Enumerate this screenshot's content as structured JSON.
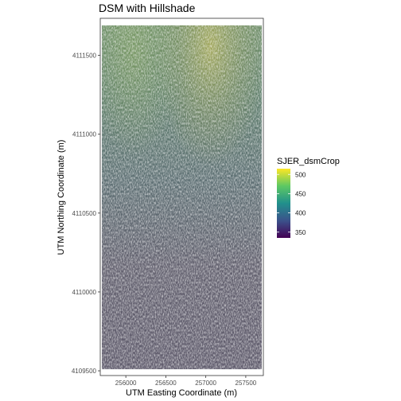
{
  "chart_data": {
    "type": "heatmap",
    "title": "DSM with Hillshade",
    "xlabel": "UTM Easting Coordinate (m)",
    "ylabel": "UTM Northing Coordinate (m)",
    "xlim": [
      255680,
      257720
    ],
    "ylim": [
      4109470,
      4111735
    ],
    "x_ticks": [
      256000,
      256500,
      257000,
      257500
    ],
    "x_tick_labels": [
      "256000",
      "256500",
      "257000",
      "257500"
    ],
    "y_ticks": [
      4109500,
      4110000,
      4110500,
      4111000,
      4111500
    ],
    "y_tick_labels": [
      "4109500",
      "4110000",
      "4110500",
      "4111000",
      "4111500"
    ],
    "raster_extent": {
      "xmin": 255700,
      "xmax": 257700,
      "ymin": 4109510,
      "ymax": 4111690
    },
    "legend": {
      "title": "SJER_dsmCrop",
      "range": [
        335,
        515
      ],
      "ticks": [
        350,
        400,
        450,
        500
      ],
      "tick_labels": [
        "350",
        "400",
        "450",
        "500"
      ],
      "colors": [
        "#440154",
        "#3b528b",
        "#21908c",
        "#5dc863",
        "#fde725"
      ]
    },
    "grid": false,
    "legend_position": "right"
  }
}
